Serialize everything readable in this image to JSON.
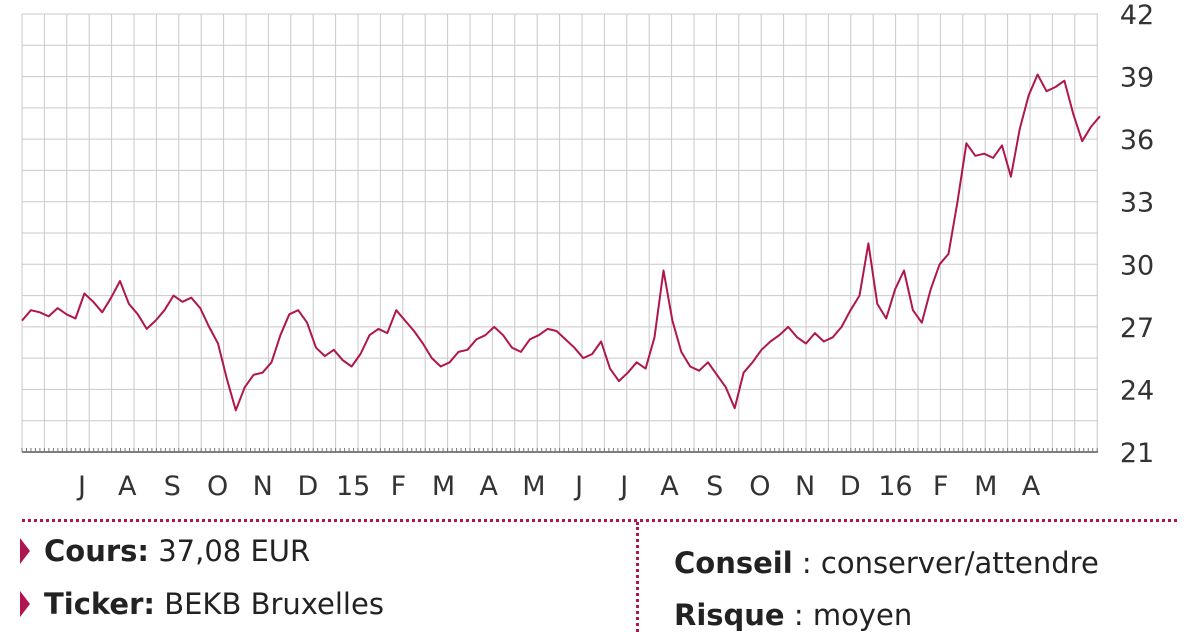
{
  "chart_data": {
    "type": "line",
    "title": "",
    "xlabel": "",
    "ylabel": "",
    "ylim": [
      21,
      42
    ],
    "yticks": [
      "21",
      "24",
      "27",
      "30",
      "33",
      "36",
      "39",
      "42"
    ],
    "xtick_labels": [
      "J",
      "A",
      "S",
      "O",
      "N",
      "D",
      "15",
      "F",
      "M",
      "A",
      "M",
      "J",
      "J",
      "A",
      "S",
      "O",
      "N",
      "D",
      "16",
      "F",
      "M",
      "A"
    ],
    "grid": true,
    "line_color": "#b0164e",
    "x_period": "June 2014 – May 2016",
    "series": [
      {
        "name": "",
        "values": [
          27.3,
          27.8,
          27.7,
          27.5,
          27.9,
          27.6,
          27.4,
          28.6,
          28.2,
          27.7,
          28.4,
          29.2,
          28.1,
          27.6,
          26.9,
          27.3,
          27.8,
          28.5,
          28.2,
          28.4,
          27.9,
          27.0,
          26.2,
          24.5,
          23.0,
          24.1,
          24.7,
          24.8,
          25.3,
          26.6,
          27.6,
          27.8,
          27.2,
          26.0,
          25.6,
          25.9,
          25.4,
          25.1,
          25.7,
          26.6,
          26.9,
          26.7,
          27.8,
          27.3,
          26.8,
          26.2,
          25.5,
          25.1,
          25.3,
          25.8,
          25.9,
          26.4,
          26.6,
          27.0,
          26.6,
          26.0,
          25.8,
          26.4,
          26.6,
          26.9,
          26.8,
          26.4,
          26.0,
          25.5,
          25.7,
          26.3,
          25.0,
          24.4,
          24.8,
          25.3,
          25.0,
          26.5,
          29.7,
          27.3,
          25.8,
          25.1,
          24.9,
          25.3,
          24.7,
          24.1,
          23.1,
          24.8,
          25.3,
          25.9,
          26.3,
          26.6,
          27.0,
          26.5,
          26.2,
          26.7,
          26.3,
          26.5,
          27.0,
          27.8,
          28.5,
          31.0,
          28.1,
          27.4,
          28.8,
          29.7,
          27.8,
          27.2,
          28.8,
          30.0,
          30.5,
          33.0,
          35.8,
          35.2,
          35.3,
          35.1,
          35.7,
          34.2,
          36.5,
          38.1,
          39.1,
          38.3,
          38.5,
          38.8,
          37.2,
          35.9,
          36.6,
          37.1
        ]
      }
    ]
  },
  "info": {
    "cours_label": "Cours:",
    "cours_value": "37,08 EUR",
    "ticker_label": "Ticker:",
    "ticker_value": "BEKB Bruxelles",
    "conseil_label": "Conseil",
    "conseil_value": " : conserver/attendre",
    "risque_label": "Risque",
    "risque_value": " : moyen"
  }
}
